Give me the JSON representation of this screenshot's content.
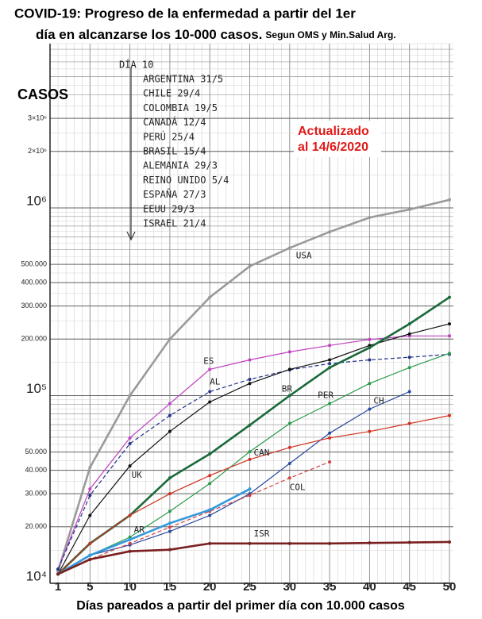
{
  "chart_data": {
    "type": "line",
    "title": "COVID-19: Progreso de la enfermedad a partir del 1er",
    "title_line2": "día en alcanzarse los 10-000 casos.",
    "subtitle": "Segun OMS y Min.Salud Arg.",
    "y_label": "CASOS",
    "x_label": "Días pareados a partir del primer día con 10.000 casos",
    "annotation_lines": [
      "Actualizado",
      "al 14/6/2020"
    ],
    "legend_heading": "DÍA 10",
    "legend_entries": [
      "ARGENTINA 31/5",
      "CHILE 29/4",
      "COLOMBIA 19/5",
      "CANADÁ 12/4",
      "PERÚ 25/4",
      "BRASIL 15/4",
      "ALEMANIA 29/3",
      "REINO UNIDO 5/4",
      "ESPAÑA 27/3",
      "EEUU 29/3",
      "ISRAEL 21/4"
    ],
    "y_log": true,
    "grid": true,
    "xlim": [
      0,
      50
    ],
    "xticks": [
      1,
      5,
      10,
      15,
      20,
      25,
      30,
      35,
      40,
      45,
      50
    ],
    "ylim": [
      10000,
      7500000
    ],
    "yticks": [
      {
        "value": 10000,
        "label": "10⁴"
      },
      {
        "value": 20000,
        "label": "20.000"
      },
      {
        "value": 30000,
        "label": "30.000"
      },
      {
        "value": 40000,
        "label": "40.000"
      },
      {
        "value": 50000,
        "label": "50.000"
      },
      {
        "value": 100000,
        "label": "10⁵"
      },
      {
        "value": 200000,
        "label": "200.000"
      },
      {
        "value": 300000,
        "label": "300.000"
      },
      {
        "value": 400000,
        "label": "400.000"
      },
      {
        "value": 500000,
        "label": "500.000"
      },
      {
        "value": 1000000,
        "label": "10⁶"
      },
      {
        "value": 2000000,
        "label": "2×10⁶"
      },
      {
        "value": 3000000,
        "label": "3×10⁶"
      }
    ],
    "x": [
      1,
      5,
      10,
      15,
      20,
      25,
      30,
      35,
      40,
      45,
      50
    ],
    "series": [
      {
        "name": "USA",
        "color": "#9a9a9a",
        "thick": true,
        "dashed": false,
        "values": [
          11600,
          41400,
          100000,
          200000,
          334000,
          489000,
          612000,
          745000,
          889000,
          980000,
          1104000
        ]
      },
      {
        "name": "ES",
        "color": "#c040c0",
        "thick": false,
        "dashed": false,
        "values": [
          11900,
          31800,
          59500,
          90600,
          138000,
          155000,
          171000,
          185000,
          199000,
          208000,
          208000
        ]
      },
      {
        "name": "AL",
        "color": "#223388",
        "thick": false,
        "dashed": true,
        "values": [
          11900,
          29400,
          55500,
          78300,
          105000,
          122000,
          137000,
          148000,
          155000,
          160000,
          166000
        ]
      },
      {
        "name": "UK",
        "color": "#111111",
        "thick": false,
        "dashed": false,
        "values": [
          11200,
          23000,
          42200,
          64400,
          92500,
          116000,
          138000,
          155000,
          185000,
          213000,
          241000
        ]
      },
      {
        "name": "BR",
        "color": "#1a6a3a",
        "thick": true,
        "dashed": false,
        "values": [
          11200,
          16300,
          23000,
          36400,
          48900,
          69600,
          100000,
          141000,
          180000,
          241000,
          334000
        ]
      },
      {
        "name": "PER",
        "color": "#2a9a4a",
        "thick": false,
        "dashed": false,
        "values": [
          11200,
          14100,
          17600,
          24200,
          34000,
          50300,
          71000,
          90600,
          116000,
          141000,
          168000
        ]
      },
      {
        "name": "CH",
        "color": "#2a4aa0",
        "thick": false,
        "dashed": false,
        "values": [
          11200,
          14100,
          16000,
          18900,
          23000,
          30000,
          43500,
          63100,
          84700,
          105000,
          null
        ]
      },
      {
        "name": "CAN",
        "color": "#d03020",
        "thick": false,
        "dashed": false,
        "values": [
          11200,
          16300,
          23000,
          30000,
          37500,
          45700,
          52900,
          59500,
          64400,
          71000,
          78300
        ]
      },
      {
        "name": "COL",
        "color": "#d04040",
        "thick": false,
        "dashed": true,
        "values": [
          11200,
          13400,
          16300,
          19900,
          24200,
          29400,
          36400,
          44300,
          null,
          null,
          null
        ]
      },
      {
        "name": "AR",
        "color": "#3399dd",
        "thick": true,
        "dashed": false,
        "values": [
          11200,
          14100,
          17100,
          20900,
          24600,
          31800,
          null,
          null,
          null,
          null,
          null
        ]
      },
      {
        "name": "ISR",
        "color": "#7a2020",
        "thick": true,
        "dashed": false,
        "values": [
          11200,
          13400,
          14800,
          15100,
          16300,
          16300,
          16300,
          16300,
          16400,
          16500,
          16600
        ]
      }
    ]
  }
}
